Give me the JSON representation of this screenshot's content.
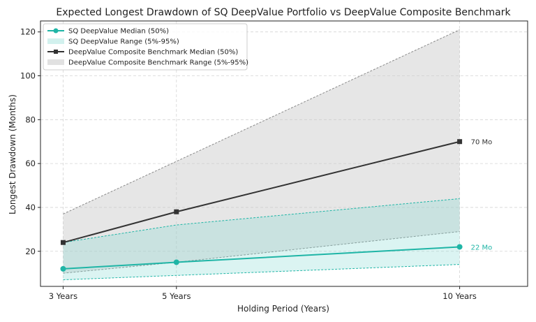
{
  "chart_data": {
    "type": "line",
    "title": "Expected Longest Drawdown of SQ DeepValue Portfolio vs DeepValue Composite Benchmark",
    "xlabel": "Holding Period (Years)",
    "ylabel": "Longest Drawdown (Months)",
    "x": [
      3,
      5,
      10
    ],
    "x_tick_labels": [
      "3 Years",
      "5 Years",
      "10 Years"
    ],
    "xlim": [
      2.6,
      11.2
    ],
    "ylim": [
      4,
      125
    ],
    "y_ticks": [
      20,
      40,
      60,
      80,
      100,
      120
    ],
    "grid": true,
    "legend_position": "top-left",
    "series": [
      {
        "name": "SQ DeepValue Median (50%)",
        "kind": "line",
        "marker": "circle",
        "color": "#1fb5a6",
        "values": [
          12,
          15,
          22
        ],
        "end_label": "22 Mo"
      },
      {
        "name": "SQ DeepValue Range (5%-95%)",
        "kind": "band",
        "color": "#7fd8cf",
        "lower": [
          7,
          9,
          14
        ],
        "upper": [
          24,
          32,
          44
        ]
      },
      {
        "name": "DeepValue Composite Benchmark Median (50%)",
        "kind": "line",
        "marker": "square",
        "color": "#333333",
        "values": [
          24,
          38,
          70
        ],
        "end_label": "70 Mo"
      },
      {
        "name": "DeepValue Composite Benchmark Range (5%-95%)",
        "kind": "band",
        "color": "#bbbbbb",
        "lower": [
          10,
          15,
          29
        ],
        "upper": [
          37,
          61,
          121
        ]
      }
    ]
  }
}
